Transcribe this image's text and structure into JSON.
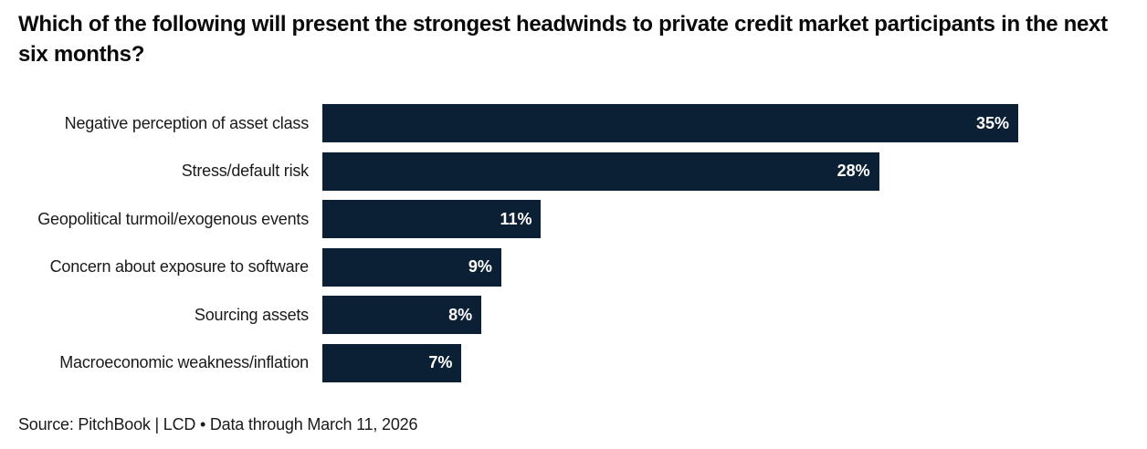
{
  "title": "Which of the following will present the strongest headwinds to private credit market participants in the next six months?",
  "source": "Source: PitchBook | LCD • Data through March 11, 2026",
  "colors": {
    "bar": "#0c2035",
    "title_text": "#0a0a0a",
    "label_text": "#1a1a1a",
    "value_text": "#ffffff",
    "background": "#ffffff"
  },
  "chart_data": {
    "type": "bar",
    "orientation": "horizontal",
    "title": "Which of the following will present the strongest headwinds to private credit market participants in the next six months?",
    "categories": [
      "Negative perception of asset class",
      "Stress/default risk",
      "Geopolitical turmoil/exogenous events",
      "Concern about exposure to software",
      "Sourcing assets",
      "Macroeconomic weakness/inflation"
    ],
    "values": [
      35,
      28,
      11,
      9,
      8,
      7
    ],
    "value_labels": [
      "35%",
      "28%",
      "11%",
      "9%",
      "8%",
      "7%"
    ],
    "xlabel": "",
    "ylabel": "",
    "xlim": [
      0,
      35
    ],
    "grid": false,
    "legend": "none",
    "value_label_position": "inside-end",
    "bar_color": "#0c2035"
  }
}
